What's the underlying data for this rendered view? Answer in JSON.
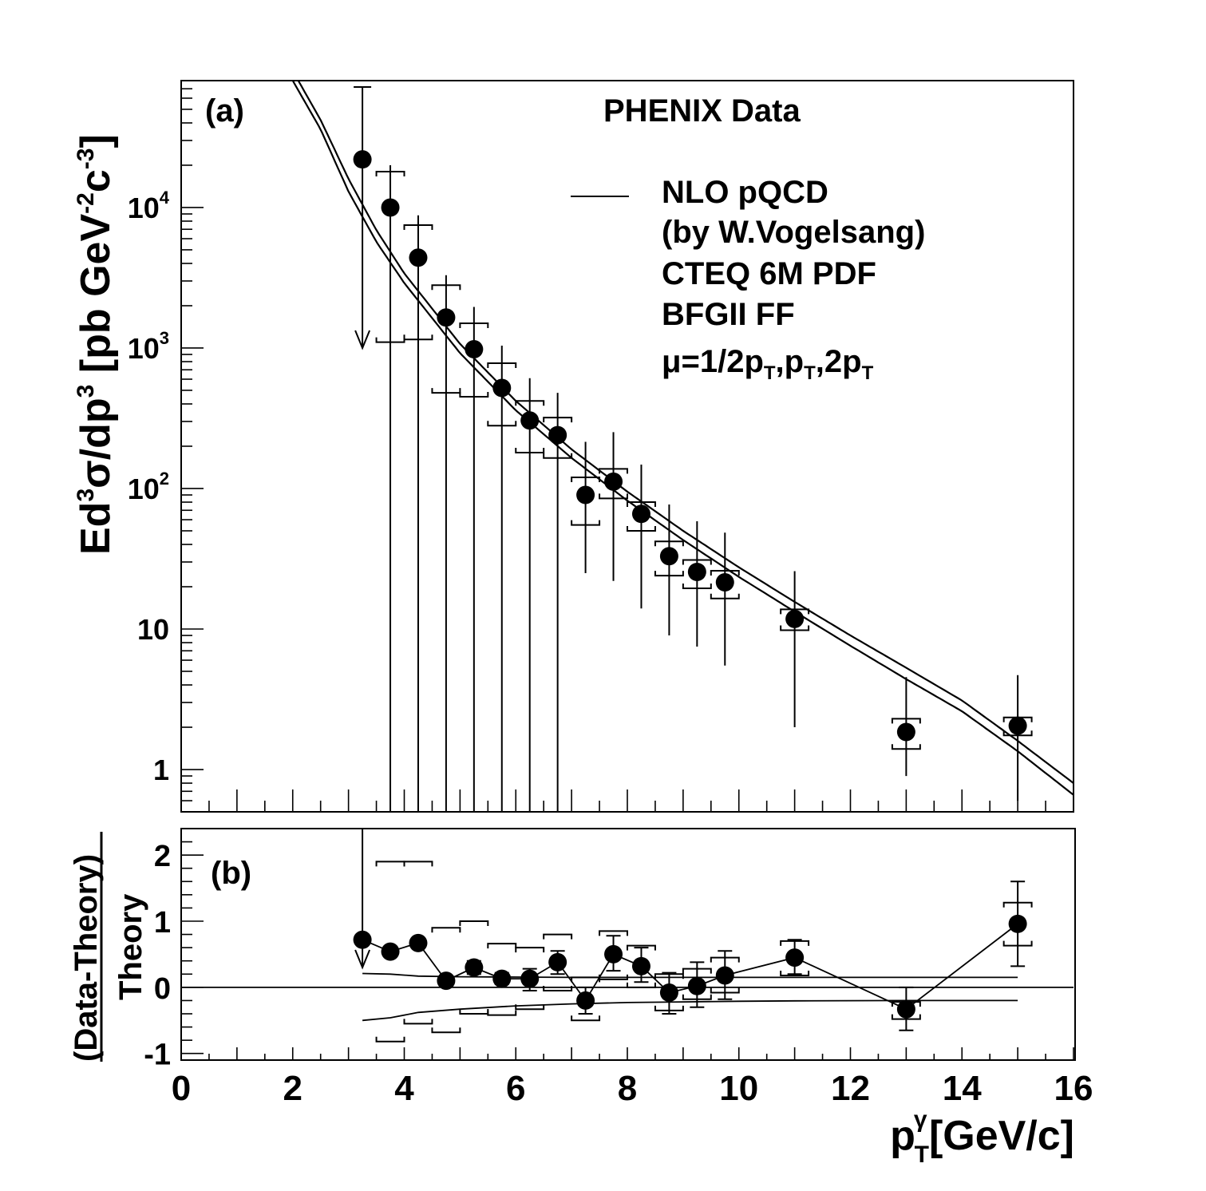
{
  "chart_data": [
    {
      "panel": "(a)",
      "type": "scatter",
      "title": "PHENIX Data",
      "ylabel_parts": {
        "a": "Ed",
        "b": "3",
        "c": "σ/dp",
        "d": "3",
        "e": " [pb GeV",
        "f": "-2",
        "g": "c",
        "h": "-3",
        "i": "]"
      },
      "yscale": "log",
      "xlim": [
        0,
        16
      ],
      "ylim": [
        0.5,
        80000
      ],
      "ytick_labels": [
        {
          "v": 1,
          "base": "1",
          "exp": ""
        },
        {
          "v": 10,
          "base": "10",
          "exp": ""
        },
        {
          "v": 100,
          "base": "10",
          "exp": "2"
        },
        {
          "v": 1000,
          "base": "10",
          "exp": "3"
        },
        {
          "v": 10000,
          "base": "10",
          "exp": "4"
        }
      ],
      "legend": {
        "line1": "NLO pQCD",
        "line2": "(by W.Vogelsang)",
        "line3": "CTEQ 6M PDF",
        "line4": "BFGII FF",
        "mu_parts": {
          "a": "μ=1/2p",
          "b": "T",
          "c": ",p",
          "d": "T",
          "e": ",2p",
          "f": "T"
        }
      },
      "points": [
        {
          "x": 3.25,
          "y": 22000,
          "elo": 0,
          "ehi": 50000,
          "slo": 0,
          "shi": 0,
          "upper_limit": true,
          "ul_y": 1000
        },
        {
          "x": 3.75,
          "y": 10000,
          "elo": 10000,
          "ehi": 10000,
          "slo": 1100,
          "shi": 18000
        },
        {
          "x": 4.25,
          "y": 4400,
          "elo": 4400,
          "ehi": 4400,
          "slo": 1150,
          "shi": 7500
        },
        {
          "x": 4.75,
          "y": 1650,
          "elo": 1650,
          "ehi": 1650,
          "slo": 480,
          "shi": 2800
        },
        {
          "x": 5.25,
          "y": 980,
          "elo": 980,
          "ehi": 980,
          "slo": 450,
          "shi": 1500
        },
        {
          "x": 5.75,
          "y": 520,
          "elo": 520,
          "ehi": 520,
          "slo": 280,
          "shi": 780
        },
        {
          "x": 6.25,
          "y": 305,
          "elo": 305,
          "ehi": 305,
          "slo": 180,
          "shi": 420
        },
        {
          "x": 6.75,
          "y": 240,
          "elo": 240,
          "ehi": 240,
          "slo": 165,
          "shi": 320
        },
        {
          "x": 7.25,
          "y": 90,
          "elo": 65,
          "ehi": 125,
          "slo": 55,
          "shi": 120
        },
        {
          "x": 7.75,
          "y": 112,
          "elo": 90,
          "ehi": 140,
          "slo": 85,
          "shi": 138
        },
        {
          "x": 8.25,
          "y": 66,
          "elo": 52,
          "ehi": 82,
          "slo": 50,
          "shi": 80
        },
        {
          "x": 8.75,
          "y": 33,
          "elo": 24,
          "ehi": 44,
          "slo": 24,
          "shi": 42
        },
        {
          "x": 9.25,
          "y": 25.5,
          "elo": 18,
          "ehi": 33,
          "slo": 19.5,
          "shi": 31
        },
        {
          "x": 9.75,
          "y": 21.5,
          "elo": 16,
          "ehi": 27,
          "slo": 16.5,
          "shi": 26
        },
        {
          "x": 11.0,
          "y": 11.8,
          "elo": 9.8,
          "ehi": 14,
          "slo": 9.8,
          "shi": 13.8
        },
        {
          "x": 13.0,
          "y": 1.85,
          "elo": 0.95,
          "ehi": 2.7,
          "slo": 1.4,
          "shi": 2.3
        },
        {
          "x": 15.0,
          "y": 2.05,
          "elo": 1.45,
          "ehi": 2.65,
          "slo": 1.75,
          "shi": 2.35
        }
      ],
      "theory_curves": [
        {
          "x": [
            2.1,
            2.5,
            3.0,
            3.5,
            4.0,
            5.0,
            6.0,
            7.0,
            8.0,
            9.0,
            10.0,
            11.0,
            12.0,
            13.0,
            14.0,
            15.0,
            16.0
          ],
          "y": [
            80000,
            42000,
            16000,
            6900,
            3400,
            1070,
            420,
            190,
            95,
            50,
            27.5,
            15.6,
            9.0,
            5.3,
            3.1,
            1.6,
            0.8
          ]
        },
        {
          "x": [
            2.0,
            2.5,
            3.0,
            3.5,
            4.0,
            5.0,
            6.0,
            7.0,
            8.0,
            9.0,
            10.0,
            11.0,
            12.0,
            13.0,
            14.0,
            15.0,
            16.0
          ],
          "y": [
            80000,
            36000,
            13000,
            5700,
            2900,
            920,
            360,
            165,
            82,
            43,
            23.5,
            13.3,
            7.6,
            4.4,
            2.6,
            1.35,
            0.66
          ]
        }
      ]
    },
    {
      "panel": "(b)",
      "type": "line",
      "ylabel_line1": "(Data-Theory)",
      "ylabel_line2": "Theory",
      "xlabel_parts": {
        "a": "p",
        "b": "γ",
        "c": "T",
        "d": "[GeV/c]"
      },
      "xlim": [
        0,
        16
      ],
      "ylim": [
        -1.1,
        2.4
      ],
      "xtick_labels": [
        "0",
        "2",
        "4",
        "6",
        "8",
        "10",
        "12",
        "14",
        "16"
      ],
      "ytick_labels": [
        "-1",
        "0",
        "1",
        "2"
      ],
      "points": [
        {
          "x": 3.25,
          "y": 0.72,
          "elo": 0,
          "ehi": 0,
          "slo": 0,
          "shi": 0,
          "upper_limit": true,
          "ul_top": 2.4,
          "ul_y": 0.3
        },
        {
          "x": 3.75,
          "y": 0.54,
          "elo": 0.54,
          "ehi": 0.54,
          "slo": -0.82,
          "shi": 1.9
        },
        {
          "x": 4.25,
          "y": 0.67,
          "elo": 0.67,
          "ehi": 0.67,
          "slo": -0.55,
          "shi": 1.9
        },
        {
          "x": 4.75,
          "y": 0.1,
          "elo": 0.1,
          "ehi": 0.1,
          "slo": -0.68,
          "shi": 0.9
        },
        {
          "x": 5.25,
          "y": 0.3,
          "elo": 0.2,
          "ehi": 0.4,
          "slo": -0.4,
          "shi": 1.0
        },
        {
          "x": 5.75,
          "y": 0.13,
          "elo": 0.05,
          "ehi": 0.22,
          "slo": -0.42,
          "shi": 0.66
        },
        {
          "x": 6.25,
          "y": 0.13,
          "elo": -0.05,
          "ehi": 0.28,
          "slo": -0.33,
          "shi": 0.6
        },
        {
          "x": 6.75,
          "y": 0.38,
          "elo": 0.2,
          "ehi": 0.55,
          "slo": -0.05,
          "shi": 0.8
        },
        {
          "x": 7.25,
          "y": -0.2,
          "elo": -0.4,
          "ehi": 0.0,
          "slo": -0.5,
          "shi": 0.15
        },
        {
          "x": 7.75,
          "y": 0.5,
          "elo": 0.25,
          "ehi": 0.78,
          "slo": 0.12,
          "shi": 0.85
        },
        {
          "x": 8.25,
          "y": 0.32,
          "elo": 0.08,
          "ehi": 0.6,
          "slo": 0.0,
          "shi": 0.63
        },
        {
          "x": 8.75,
          "y": -0.08,
          "elo": -0.4,
          "ehi": 0.22,
          "slo": -0.35,
          "shi": 0.2
        },
        {
          "x": 9.25,
          "y": 0.02,
          "elo": -0.3,
          "ehi": 0.38,
          "slo": -0.18,
          "shi": 0.28
        },
        {
          "x": 9.75,
          "y": 0.18,
          "elo": -0.18,
          "ehi": 0.55,
          "slo": -0.08,
          "shi": 0.45
        },
        {
          "x": 11.0,
          "y": 0.45,
          "elo": 0.2,
          "ehi": 0.72,
          "slo": 0.18,
          "shi": 0.7
        },
        {
          "x": 13.0,
          "y": -0.33,
          "elo": -0.65,
          "ehi": 0.0,
          "slo": -0.48,
          "shi": -0.22
        },
        {
          "x": 15.0,
          "y": 0.96,
          "elo": 0.32,
          "ehi": 1.6,
          "slo": 0.63,
          "shi": 1.28
        }
      ],
      "band_upper": {
        "x": [
          3.25,
          3.75,
          4.25,
          5.0,
          6.0,
          7.0,
          8.0,
          9.0,
          10.0,
          11.0,
          13.0,
          15.0
        ],
        "y": [
          0.21,
          0.2,
          0.17,
          0.16,
          0.155,
          0.15,
          0.15,
          0.15,
          0.15,
          0.15,
          0.15,
          0.15
        ]
      },
      "band_lower": {
        "x": [
          3.25,
          3.75,
          4.25,
          5.0,
          6.0,
          7.0,
          8.0,
          9.0,
          10.0,
          11.0,
          13.0,
          15.0
        ],
        "y": [
          -0.5,
          -0.46,
          -0.38,
          -0.33,
          -0.28,
          -0.25,
          -0.23,
          -0.22,
          -0.21,
          -0.205,
          -0.2,
          -0.2
        ]
      }
    }
  ]
}
